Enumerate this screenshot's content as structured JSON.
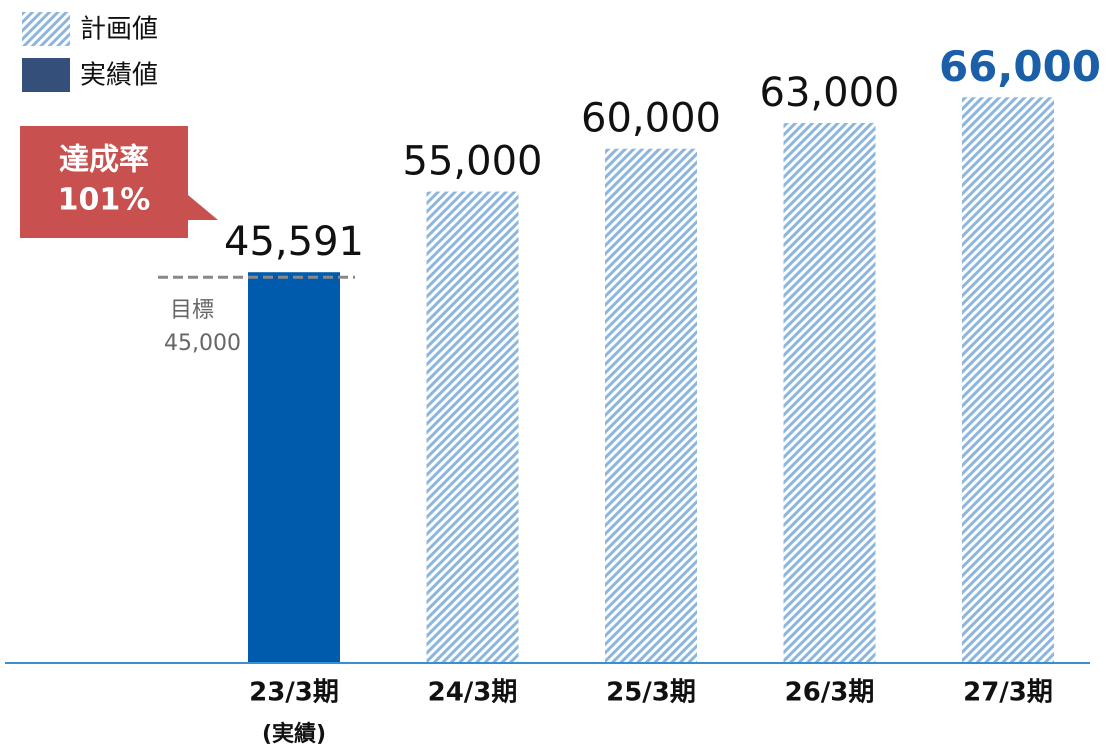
{
  "chart_data": {
    "type": "bar",
    "categories": [
      "23/3期",
      "24/3期",
      "25/3期",
      "26/3期",
      "27/3期"
    ],
    "category_note": "(実績)",
    "series": [
      {
        "name": "計画値",
        "color": "#8cb6dd",
        "pattern": "hatch",
        "values": [
          null,
          55000,
          60000,
          63000,
          66000
        ],
        "value_labels": [
          null,
          "55,000",
          "60,000",
          "63,000",
          "66,000"
        ]
      },
      {
        "name": "実績値",
        "color": "#005bac",
        "legend_color": "#34507a",
        "values": [
          45591,
          null,
          null,
          null,
          null
        ],
        "value_labels": [
          "45,591",
          null,
          null,
          null,
          null
        ]
      }
    ],
    "highlight_index": 4,
    "highlight_color": "#1a5fa8",
    "target": {
      "label": "目標",
      "value": 45000,
      "value_label": "45,000"
    },
    "achievement": {
      "label": "達成率",
      "value": 101,
      "value_label": "101%"
    },
    "ylim": [
      0,
      70000
    ],
    "axis_color": "#3a8fd0"
  }
}
